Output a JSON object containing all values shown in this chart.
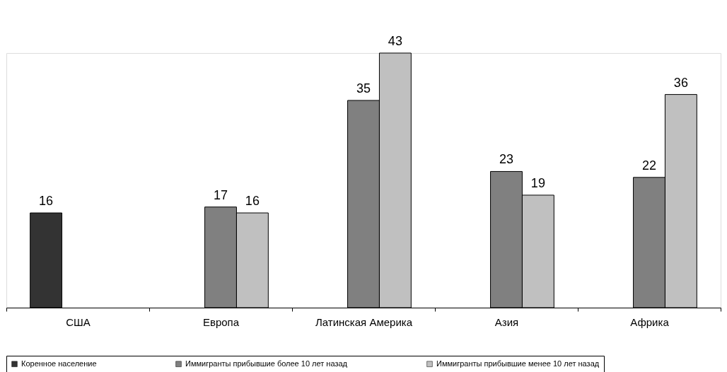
{
  "chart_data": {
    "type": "bar",
    "categories": [
      "США",
      "Европа",
      "Латинская Америка",
      "Азия",
      "Африка"
    ],
    "series": [
      {
        "name": "Коренное население",
        "color": "#333333",
        "values": [
          16,
          null,
          null,
          null,
          null
        ]
      },
      {
        "name": "Иммигранты прибывшие более 10 лет назад",
        "color": "#808080",
        "values": [
          null,
          17,
          35,
          23,
          22
        ]
      },
      {
        "name": "Иммигранты прибывшие менее 10 лет назад",
        "color": "#c0c0c0",
        "values": [
          null,
          16,
          43,
          19,
          36
        ]
      }
    ],
    "data_labels": true,
    "grid": false,
    "legend": "bottom"
  }
}
